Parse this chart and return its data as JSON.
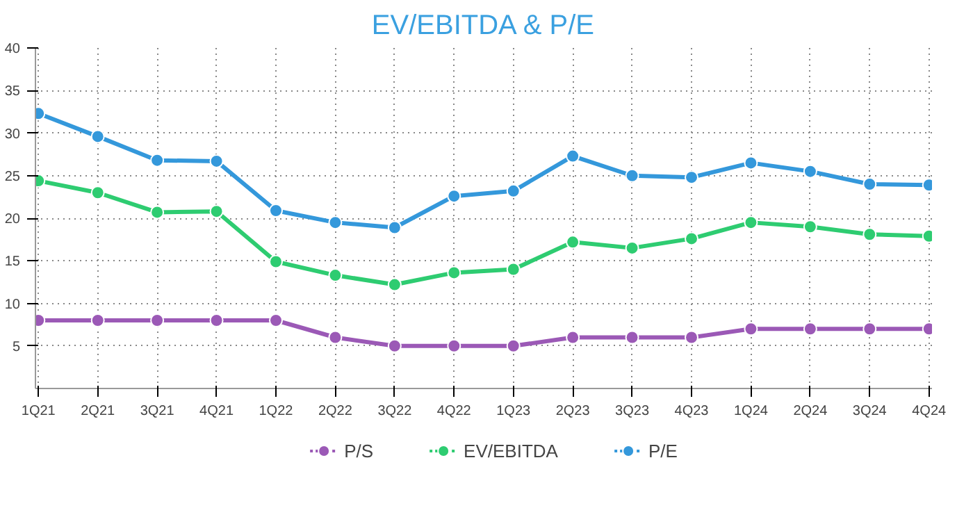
{
  "chart_data": {
    "type": "line",
    "title": "EV/EBITDA & P/E",
    "categories": [
      "1Q21",
      "2Q21",
      "3Q21",
      "4Q21",
      "1Q22",
      "2Q22",
      "3Q22",
      "4Q22",
      "1Q23",
      "2Q23",
      "3Q23",
      "4Q23",
      "1Q24",
      "2Q24",
      "3Q24",
      "4Q24"
    ],
    "series": [
      {
        "name": "P/S",
        "color": "#9b59b6",
        "values": [
          8,
          8,
          8,
          8,
          8,
          6,
          5,
          5,
          5,
          6,
          6,
          6,
          7,
          7,
          7,
          7
        ]
      },
      {
        "name": "EV/EBITDA",
        "color": "#2ecc71",
        "values": [
          24.4,
          23.0,
          20.7,
          20.8,
          14.9,
          13.3,
          12.2,
          13.6,
          14.0,
          17.2,
          16.5,
          17.6,
          19.5,
          19.0,
          18.1,
          17.9
        ]
      },
      {
        "name": "P/E",
        "color": "#3498db",
        "values": [
          32.3,
          29.6,
          26.8,
          26.7,
          20.9,
          19.5,
          18.9,
          22.6,
          23.2,
          27.3,
          25.0,
          24.8,
          26.5,
          25.5,
          24.0,
          23.9
        ]
      }
    ],
    "ylim": [
      0,
      40
    ],
    "yticks": [
      5,
      10,
      15,
      20,
      25,
      30,
      35,
      40
    ],
    "grid": true,
    "legend": "bottom",
    "marker": "circle",
    "line_style": "solid"
  }
}
